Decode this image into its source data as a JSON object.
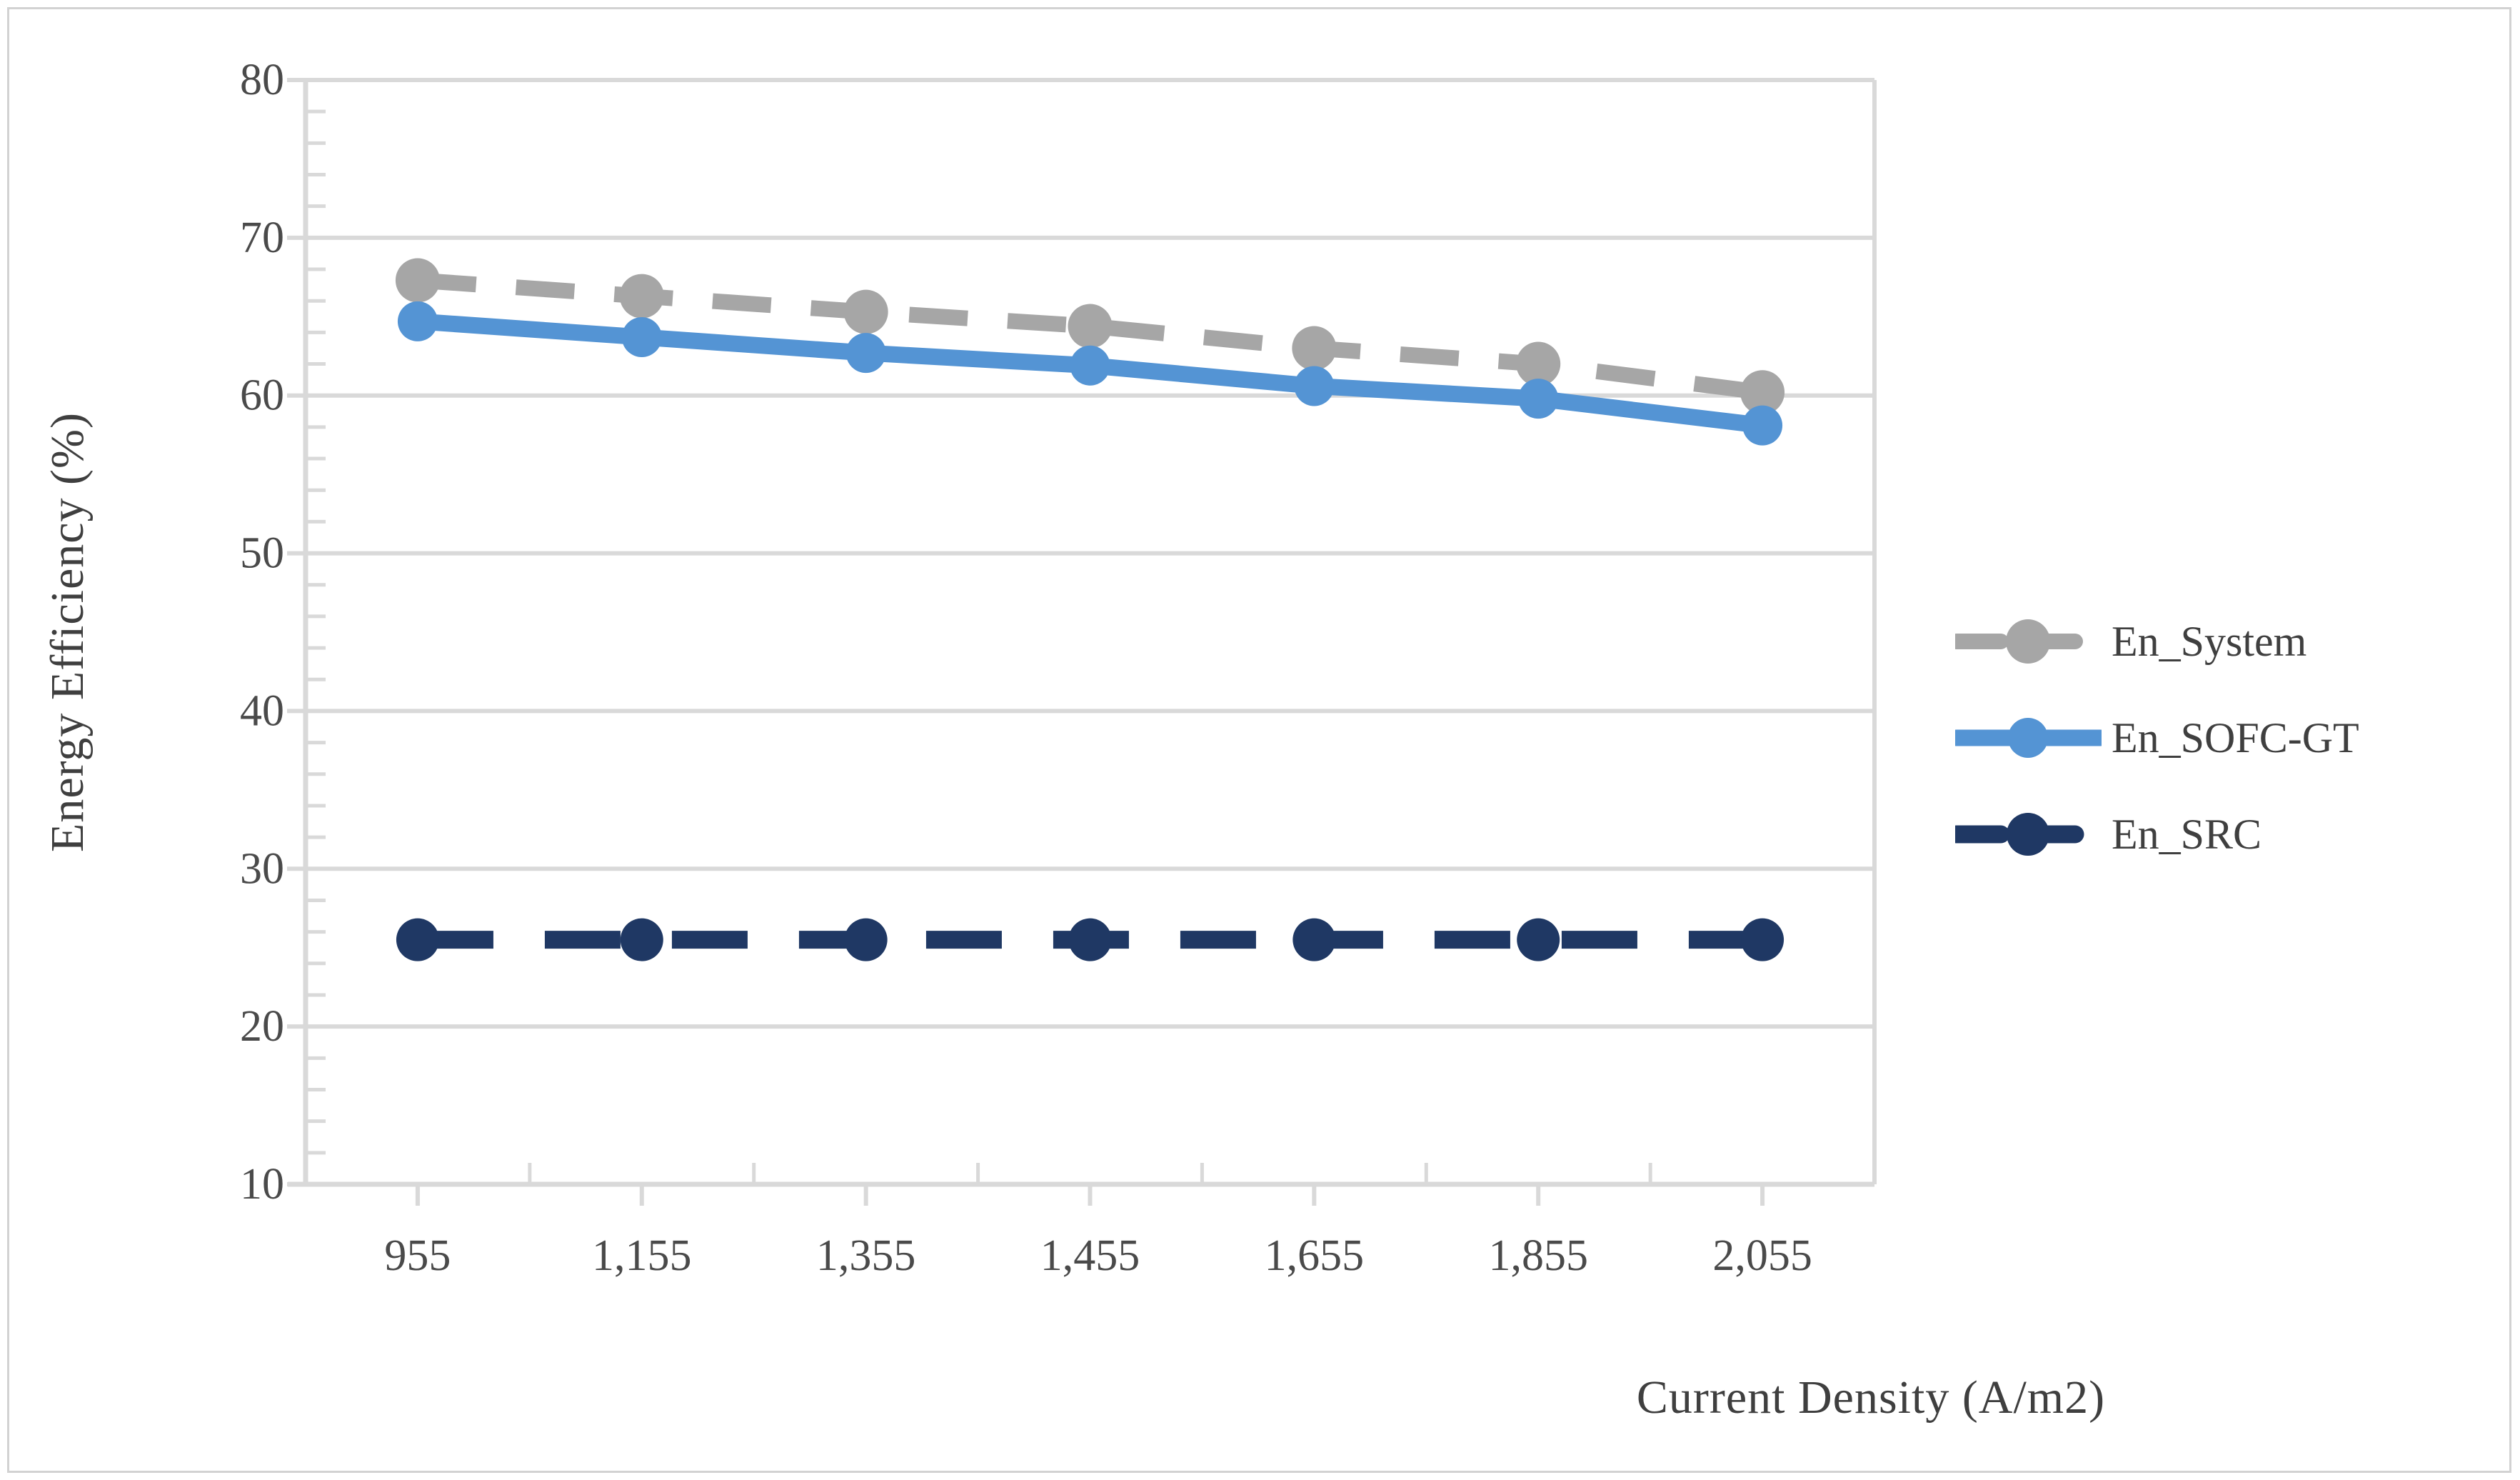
{
  "figure": {
    "background": "#ffffff",
    "border_color": "#d2d2d2"
  },
  "chart_data": {
    "type": "line",
    "title": "",
    "xlabel": "Current Density (A/m2)",
    "ylabel": "Energy Efficiency (%)",
    "categories": [
      "955",
      "1,155",
      "1,355",
      "1,455",
      "1,655",
      "1,855",
      "2,055"
    ],
    "ylim": [
      10,
      80
    ],
    "yticks": [
      10,
      20,
      30,
      40,
      50,
      60,
      70,
      80
    ],
    "y_minor_tick_step": 2,
    "grid": "horizontal-major-gridlines-on",
    "legend_position": "right-middle",
    "series": [
      {
        "name": "En_System",
        "color": "#a6a6a6",
        "line_style": "dashed",
        "marker": "circle",
        "values": [
          67.3,
          66.3,
          65.3,
          64.4,
          63.0,
          62.0,
          60.2
        ]
      },
      {
        "name": "En_SOFC-GT",
        "color": "#5494d4",
        "line_style": "solid",
        "marker": "circle",
        "values": [
          64.7,
          63.7,
          62.7,
          61.9,
          60.6,
          59.8,
          58.1
        ]
      },
      {
        "name": "En_SRC",
        "color": "#1f3864",
        "line_style": "dashed",
        "marker": "circle",
        "values": [
          25.5,
          25.5,
          25.5,
          25.5,
          25.5,
          25.5,
          25.5
        ]
      }
    ],
    "colors": {
      "text": "#3f3f3f",
      "tick_label": "#4a4a4a",
      "axis": "#d9d9d9",
      "gridline": "#d9d9d9"
    }
  }
}
